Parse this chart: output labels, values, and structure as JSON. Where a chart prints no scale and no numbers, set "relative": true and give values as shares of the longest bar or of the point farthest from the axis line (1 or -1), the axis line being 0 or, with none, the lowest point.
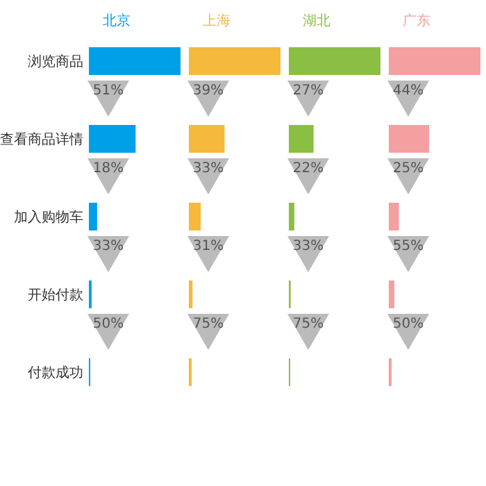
{
  "chart_data": [
    {
      "type": "bar",
      "orientation": "horizontal",
      "relative": true,
      "title": "北京",
      "color": "#00a0e9",
      "categories": [
        "浏览商品",
        "查看商品详情",
        "加入购物车",
        "开始付款",
        "付款成功"
      ],
      "values": [
        1,
        0.51,
        0.09,
        0.03,
        0.015
      ],
      "annotations": [
        "51%",
        "18%",
        "33%",
        "50%"
      ],
      "tick_labels": "y"
    },
    {
      "type": "bar",
      "orientation": "horizontal",
      "relative": true,
      "title": "上海",
      "color": "#f5b93c",
      "categories": [
        "浏览商品",
        "查看商品详情",
        "加入购物车",
        "开始付款",
        "付款成功"
      ],
      "values": [
        1,
        0.39,
        0.13,
        0.04,
        0.03
      ],
      "annotations": [
        "39%",
        "33%",
        "31%",
        "75%"
      ],
      "tick_labels": false
    },
    {
      "type": "bar",
      "orientation": "horizontal",
      "relative": true,
      "title": "湖北",
      "color": "#8bbf43",
      "categories": [
        "浏览商品",
        "查看商品详情",
        "加入购物车",
        "开始付款",
        "付款成功"
      ],
      "values": [
        1,
        0.27,
        0.06,
        0.02,
        0.015
      ],
      "annotations": [
        "27%",
        "22%",
        "33%",
        "75%"
      ],
      "tick_labels": false
    },
    {
      "type": "bar",
      "orientation": "horizontal",
      "relative": true,
      "title": "广东",
      "color": "#f4a0a0",
      "categories": [
        "浏览商品",
        "查看商品详情",
        "加入购物车",
        "开始付款",
        "付款成功"
      ],
      "values": [
        1,
        0.44,
        0.11,
        0.06,
        0.03
      ],
      "annotations": [
        "44%",
        "25%",
        "55%",
        "50%"
      ],
      "tick_labels": false
    }
  ]
}
